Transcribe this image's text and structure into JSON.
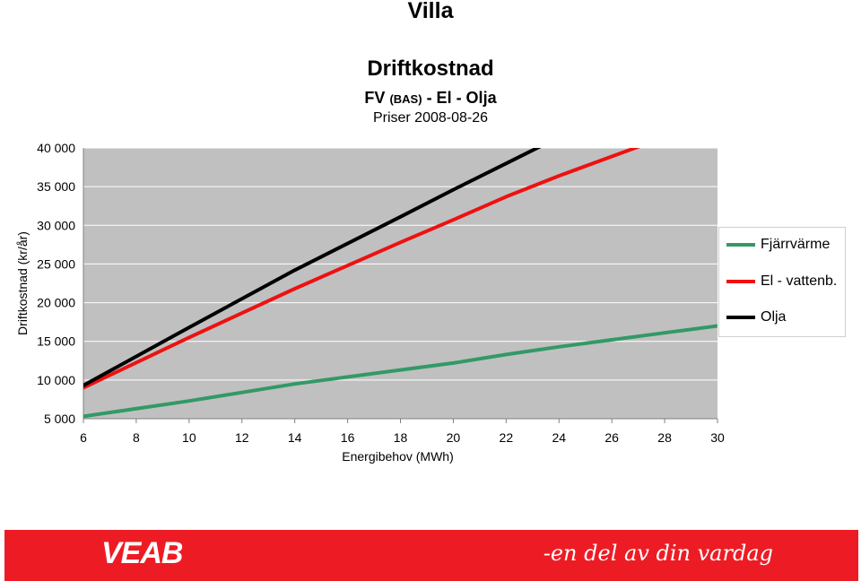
{
  "page": {
    "title": "Villa"
  },
  "chart_data": {
    "type": "line",
    "title": "Driftkostnad",
    "subtitle_prefix": "FV",
    "subtitle_small": "(BAS)",
    "subtitle_suffix": "- El - Olja",
    "date_text": "Priser 2008-08-26",
    "xlabel": "Energibehov (MWh)",
    "ylabel": "Driftkostnad (kr/år)",
    "xlim": [
      6,
      30
    ],
    "ylim": [
      5000,
      40000
    ],
    "x_ticks": [
      6,
      8,
      10,
      12,
      14,
      16,
      18,
      20,
      22,
      24,
      26,
      28,
      30
    ],
    "y_ticks": [
      5000,
      10000,
      15000,
      20000,
      25000,
      30000,
      35000,
      40000
    ],
    "y_tick_labels": [
      "5 000",
      "10 000",
      "15 000",
      "20 000",
      "25 000",
      "30 000",
      "35 000",
      "40 000"
    ],
    "grid": "horizontal",
    "legend_position": "right",
    "plot_background": "#c0c0c0",
    "series": [
      {
        "name": "Fjärrvärme",
        "color": "#339966",
        "x": [
          6,
          10,
          14,
          18,
          20,
          22,
          24,
          26,
          28,
          30
        ],
        "y": [
          5300,
          7300,
          9500,
          11300,
          12200,
          13300,
          14300,
          15200,
          16100,
          17000
        ]
      },
      {
        "name": "El - vattenb.",
        "color": "#ee1111",
        "x": [
          6,
          10,
          14,
          18,
          20,
          22,
          24,
          26,
          28,
          29.3
        ],
        "y": [
          9000,
          15500,
          21800,
          27800,
          30700,
          33700,
          36400,
          38900,
          41400,
          43000
        ]
      },
      {
        "name": "Olja",
        "color": "#000000",
        "x": [
          6,
          10,
          14,
          18,
          20,
          22,
          24,
          25.5
        ],
        "y": [
          9300,
          16800,
          24200,
          31100,
          34600,
          38000,
          41400,
          44000
        ]
      }
    ]
  },
  "footer": {
    "logo_text": "VEAB",
    "slogan": "-en del av din vardag",
    "color": "#ed1c24"
  }
}
